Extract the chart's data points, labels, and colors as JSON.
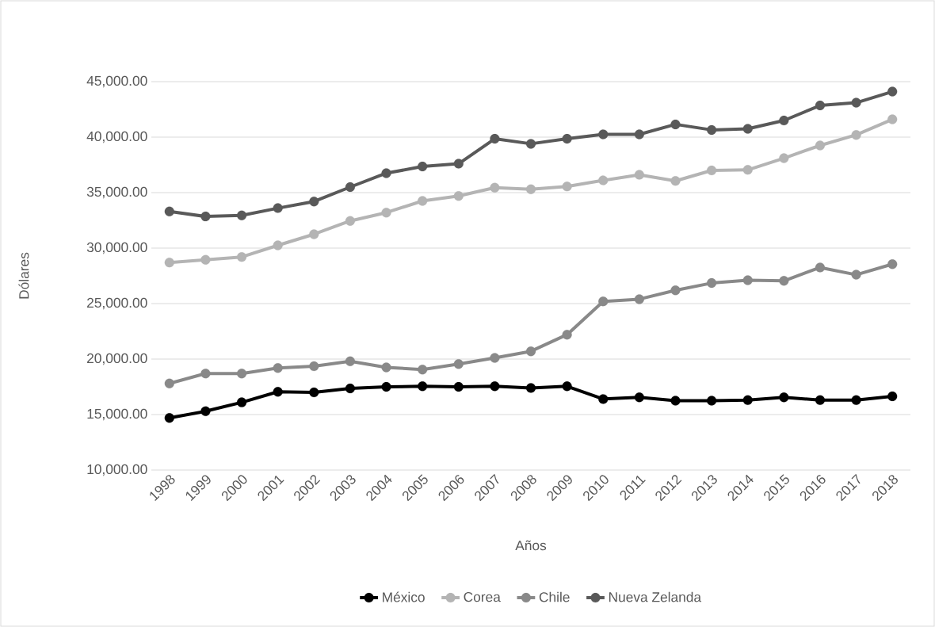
{
  "chart_data": {
    "type": "line",
    "xlabel": "Años",
    "ylabel": "Dólares",
    "categories": [
      "1998",
      "1999",
      "2000",
      "2001",
      "2002",
      "2003",
      "2004",
      "2005",
      "2006",
      "2007",
      "2008",
      "2009",
      "2010",
      "2011",
      "2012",
      "2013",
      "2014",
      "2015",
      "2016",
      "2017",
      "2018"
    ],
    "series": [
      {
        "name": "México",
        "color": "#000000",
        "values": [
          14700,
          15300,
          16100,
          17050,
          17000,
          17350,
          17500,
          17550,
          17500,
          17550,
          17400,
          17550,
          16400,
          16550,
          16250,
          16250,
          16300,
          16550,
          16300,
          16300,
          16650
        ]
      },
      {
        "name": "Corea",
        "color": "#b4b4b4",
        "values": [
          28700,
          28950,
          29200,
          30250,
          31250,
          32450,
          33200,
          34250,
          34700,
          35450,
          35300,
          35550,
          36100,
          36600,
          36050,
          37000,
          37050,
          38100,
          39250,
          40200,
          41600
        ]
      },
      {
        "name": "Chile",
        "color": "#898989",
        "values": [
          17800,
          18700,
          18700,
          19200,
          19350,
          19800,
          19250,
          19050,
          19550,
          20100,
          20700,
          22200,
          25200,
          25400,
          26200,
          26850,
          27100,
          27050,
          28250,
          27600,
          28550
        ]
      },
      {
        "name": "Nueva Zelanda",
        "color": "#595959",
        "values": [
          33300,
          32850,
          32950,
          33600,
          34200,
          35500,
          36750,
          37350,
          37600,
          39850,
          39400,
          39850,
          40250,
          40250,
          41150,
          40650,
          40750,
          41500,
          42850,
          43100,
          44100
        ]
      }
    ],
    "ylim": [
      10000,
      45000
    ],
    "yticks": [
      {
        "value": 10000,
        "label": "10,000.00"
      },
      {
        "value": 15000,
        "label": "15,000.00"
      },
      {
        "value": 20000,
        "label": "20,000.00"
      },
      {
        "value": 25000,
        "label": "25,000.00"
      },
      {
        "value": 30000,
        "label": "30,000.00"
      },
      {
        "value": 35000,
        "label": "35,000.00"
      },
      {
        "value": 40000,
        "label": "40,000.00"
      },
      {
        "value": 45000,
        "label": "45,000.00"
      }
    ],
    "grid": "y",
    "legend": "bottom",
    "marker": "circle",
    "line_style": "solid"
  }
}
